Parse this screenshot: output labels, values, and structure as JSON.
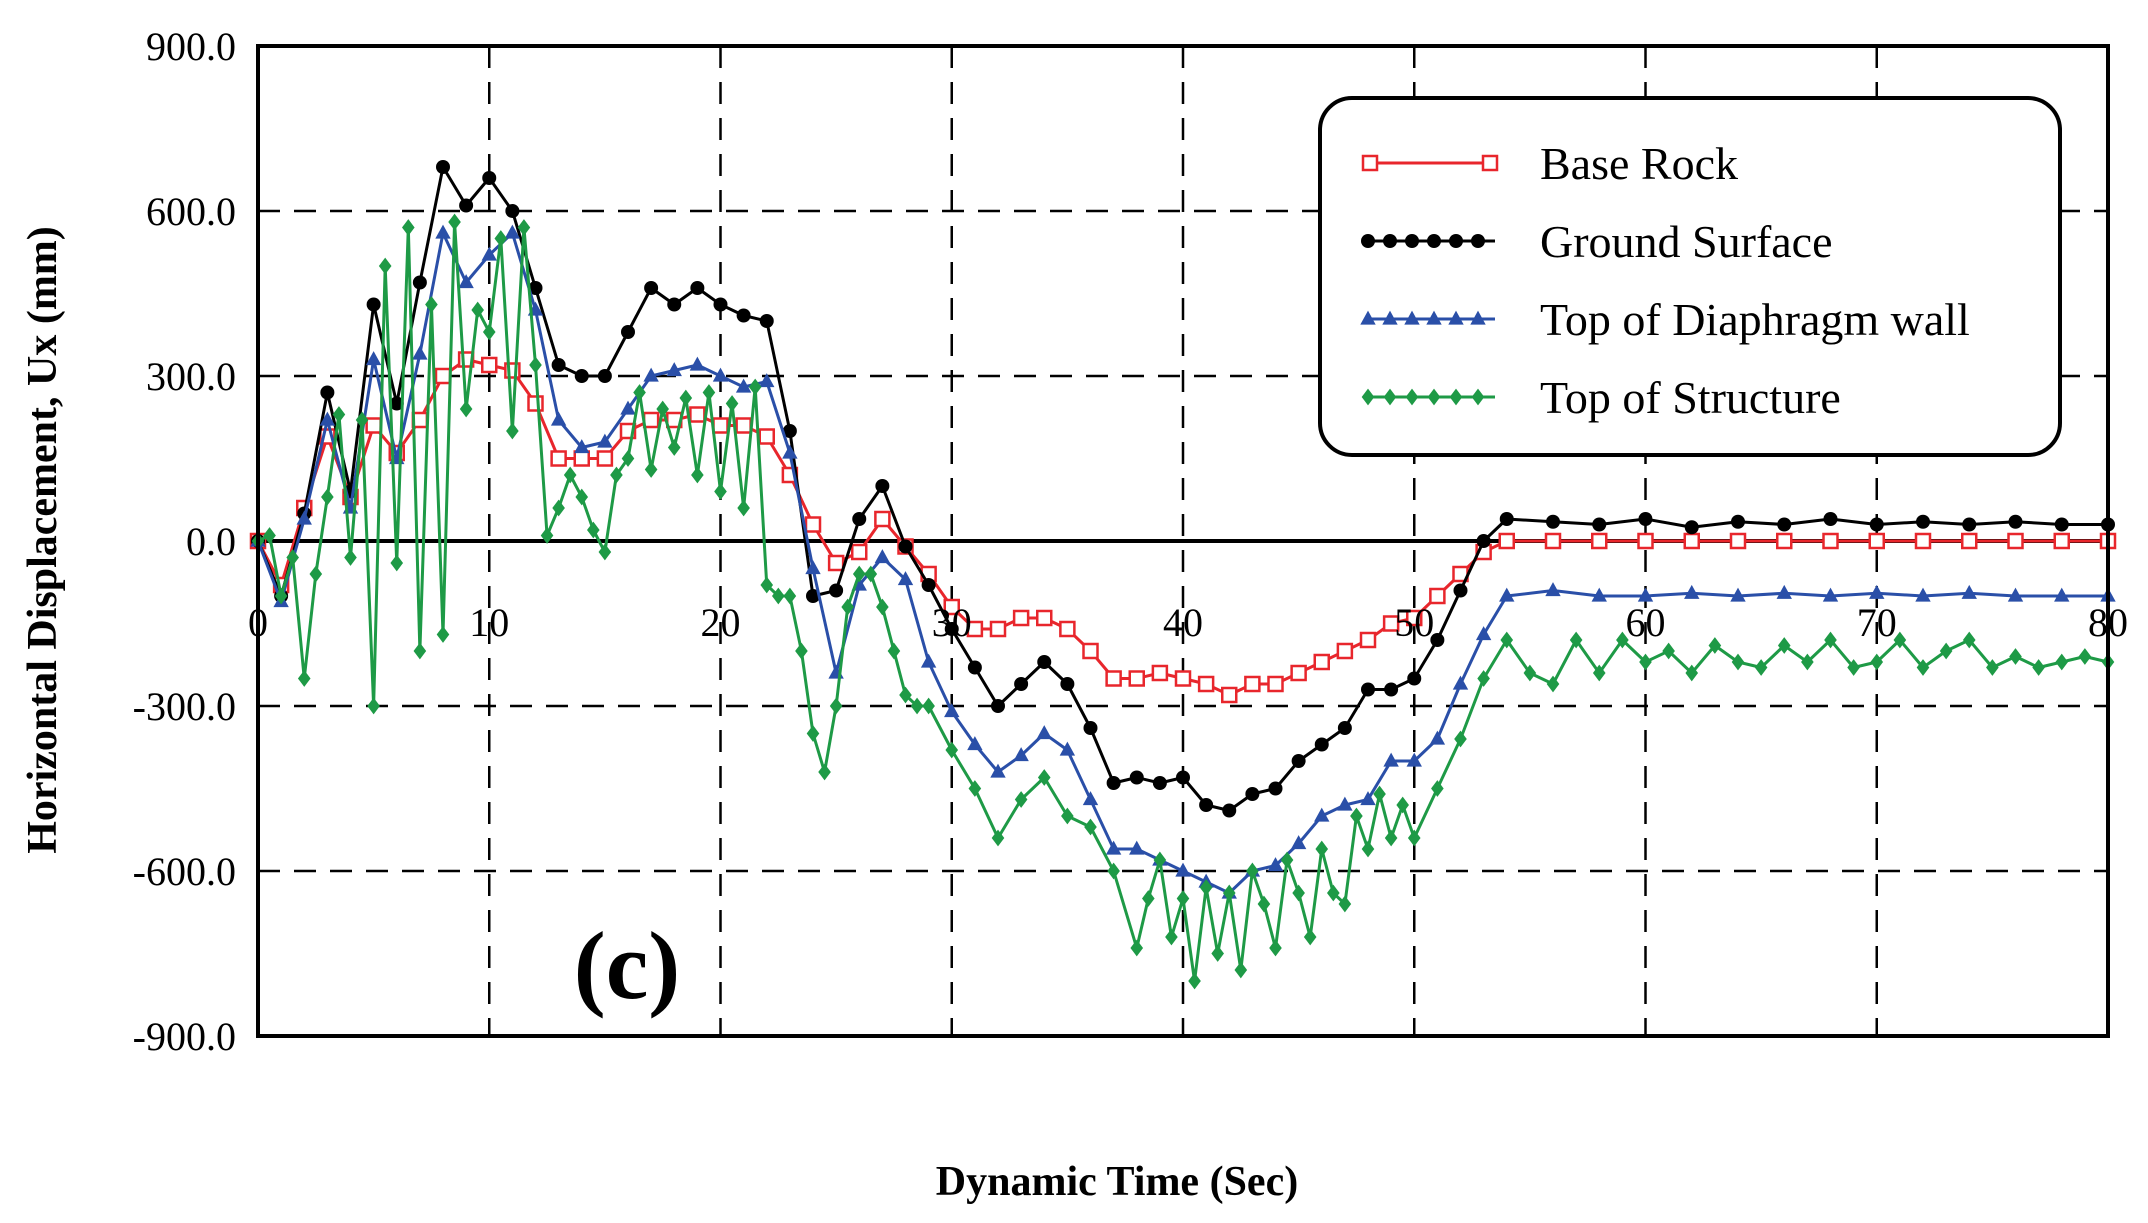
{
  "chart_data": {
    "type": "line",
    "title": "",
    "xlabel": "Dynamic Time (Sec)",
    "ylabel": "Horizontal Displacement, Ux (mm)",
    "xlim": [
      0,
      80
    ],
    "ylim": [
      -900,
      900
    ],
    "xticks": [
      0,
      10,
      20,
      30,
      40,
      50,
      60,
      70,
      80
    ],
    "xtick_labels": [
      "0",
      "10",
      "20",
      "30",
      "40",
      "50",
      "60",
      "70",
      "80"
    ],
    "yticks": [
      900,
      600,
      300,
      0,
      -300,
      -600,
      -900
    ],
    "ytick_labels": [
      "900.0",
      "600.0",
      "300.0",
      "0.0",
      "-300.0",
      "-600.0",
      "-900.0"
    ],
    "grid": true,
    "legend_position": "top-right",
    "annotation": "(c)",
    "series": [
      {
        "name": "Base Rock",
        "color": "#e8262c",
        "marker": "square-open",
        "x": [
          0,
          1,
          2,
          3,
          4,
          5,
          6,
          7,
          8,
          9,
          10,
          11,
          12,
          13,
          14,
          15,
          16,
          17,
          18,
          19,
          20,
          21,
          22,
          23,
          24,
          25,
          26,
          27,
          28,
          29,
          30,
          31,
          32,
          33,
          34,
          35,
          36,
          37,
          38,
          39,
          40,
          41,
          42,
          43,
          44,
          45,
          46,
          47,
          48,
          49,
          50,
          51,
          52,
          53,
          54,
          56,
          58,
          60,
          62,
          64,
          66,
          68,
          70,
          72,
          74,
          76,
          78,
          80
        ],
        "values": [
          0,
          -80,
          60,
          190,
          80,
          210,
          160,
          220,
          300,
          330,
          320,
          310,
          250,
          150,
          150,
          150,
          200,
          220,
          220,
          230,
          210,
          210,
          190,
          120,
          30,
          -40,
          -20,
          40,
          -10,
          -60,
          -120,
          -160,
          -160,
          -140,
          -140,
          -160,
          -200,
          -250,
          -250,
          -240,
          -250,
          -260,
          -280,
          -260,
          -260,
          -240,
          -220,
          -200,
          -180,
          -150,
          -140,
          -100,
          -60,
          -20,
          0,
          0,
          0,
          0,
          0,
          0,
          0,
          0,
          0,
          0,
          0,
          0,
          0,
          0
        ]
      },
      {
        "name": "Ground Surface",
        "color": "#000000",
        "marker": "circle-filled",
        "x": [
          0,
          1,
          2,
          3,
          4,
          5,
          6,
          7,
          8,
          9,
          10,
          11,
          12,
          13,
          14,
          15,
          16,
          17,
          18,
          19,
          20,
          21,
          22,
          23,
          24,
          25,
          26,
          27,
          28,
          29,
          30,
          31,
          32,
          33,
          34,
          35,
          36,
          37,
          38,
          39,
          40,
          41,
          42,
          43,
          44,
          45,
          46,
          47,
          48,
          49,
          50,
          51,
          52,
          53,
          54,
          56,
          58,
          60,
          62,
          64,
          66,
          68,
          70,
          72,
          74,
          76,
          78,
          80
        ],
        "values": [
          0,
          -100,
          50,
          270,
          90,
          430,
          250,
          470,
          680,
          610,
          660,
          600,
          460,
          320,
          300,
          300,
          380,
          460,
          430,
          460,
          430,
          410,
          400,
          200,
          -100,
          -90,
          40,
          100,
          -10,
          -80,
          -160,
          -230,
          -300,
          -260,
          -220,
          -260,
          -340,
          -440,
          -430,
          -440,
          -430,
          -480,
          -490,
          -460,
          -450,
          -400,
          -370,
          -340,
          -270,
          -270,
          -250,
          -180,
          -90,
          0,
          40,
          35,
          30,
          40,
          25,
          35,
          30,
          40,
          30,
          35,
          30,
          35,
          30,
          30
        ]
      },
      {
        "name": "Top of Diaphragm wall",
        "color": "#2a4fa8",
        "marker": "triangle-filled",
        "x": [
          0,
          1,
          2,
          3,
          4,
          5,
          6,
          7,
          8,
          9,
          10,
          11,
          12,
          13,
          14,
          15,
          16,
          17,
          18,
          19,
          20,
          21,
          22,
          23,
          24,
          25,
          26,
          27,
          28,
          29,
          30,
          31,
          32,
          33,
          34,
          35,
          36,
          37,
          38,
          39,
          40,
          41,
          42,
          43,
          44,
          45,
          46,
          47,
          48,
          49,
          50,
          51,
          52,
          53,
          54,
          56,
          58,
          60,
          62,
          64,
          66,
          68,
          70,
          72,
          74,
          76,
          78,
          80
        ],
        "values": [
          0,
          -110,
          40,
          220,
          60,
          330,
          150,
          340,
          560,
          470,
          520,
          560,
          420,
          220,
          170,
          180,
          240,
          300,
          310,
          320,
          300,
          280,
          290,
          160,
          -50,
          -240,
          -80,
          -30,
          -70,
          -220,
          -310,
          -370,
          -420,
          -390,
          -350,
          -380,
          -470,
          -560,
          -560,
          -580,
          -600,
          -620,
          -640,
          -600,
          -590,
          -550,
          -500,
          -480,
          -470,
          -400,
          -400,
          -360,
          -260,
          -170,
          -100,
          -90,
          -100,
          -100,
          -95,
          -100,
          -95,
          -100,
          -95,
          -100,
          -95,
          -100,
          -100,
          -100
        ]
      },
      {
        "name": "Top of Structure",
        "color": "#1e9a46",
        "marker": "diamond-filled",
        "x": [
          0,
          0.5,
          1,
          1.5,
          2,
          2.5,
          3,
          3.5,
          4,
          4.5,
          5,
          5.5,
          6,
          6.5,
          7,
          7.5,
          8,
          8.5,
          9,
          9.5,
          10,
          10.5,
          11,
          11.5,
          12,
          12.5,
          13,
          13.5,
          14,
          14.5,
          15,
          15.5,
          16,
          16.5,
          17,
          17.5,
          18,
          18.5,
          19,
          19.5,
          20,
          20.5,
          21,
          21.5,
          22,
          22.5,
          23,
          23.5,
          24,
          24.5,
          25,
          25.5,
          26,
          26.5,
          27,
          27.5,
          28,
          28.5,
          29,
          30,
          31,
          32,
          33,
          34,
          35,
          36,
          37,
          38,
          38.5,
          39,
          39.5,
          40,
          40.5,
          41,
          41.5,
          42,
          42.5,
          43,
          43.5,
          44,
          44.5,
          45,
          45.5,
          46,
          46.5,
          47,
          47.5,
          48,
          48.5,
          49,
          49.5,
          50,
          51,
          52,
          53,
          54,
          55,
          56,
          57,
          58,
          59,
          60,
          61,
          62,
          63,
          64,
          65,
          66,
          67,
          68,
          69,
          70,
          71,
          72,
          73,
          74,
          75,
          76,
          77,
          78,
          79,
          80
        ],
        "values": [
          0,
          10,
          -100,
          -30,
          -250,
          -60,
          80,
          230,
          -30,
          220,
          -300,
          500,
          -40,
          570,
          -200,
          430,
          -170,
          580,
          240,
          420,
          380,
          550,
          200,
          570,
          320,
          10,
          60,
          120,
          80,
          20,
          -20,
          120,
          150,
          270,
          130,
          240,
          170,
          260,
          120,
          270,
          90,
          250,
          60,
          280,
          -80,
          -100,
          -100,
          -200,
          -350,
          -420,
          -300,
          -120,
          -60,
          -60,
          -120,
          -200,
          -280,
          -300,
          -300,
          -380,
          -450,
          -540,
          -470,
          -430,
          -500,
          -520,
          -600,
          -740,
          -650,
          -580,
          -720,
          -650,
          -800,
          -630,
          -750,
          -640,
          -780,
          -600,
          -660,
          -740,
          -580,
          -640,
          -720,
          -560,
          -640,
          -660,
          -500,
          -560,
          -460,
          -540,
          -480,
          -540,
          -450,
          -360,
          -250,
          -180,
          -240,
          -260,
          -180,
          -240,
          -180,
          -220,
          -200,
          -240,
          -190,
          -220,
          -230,
          -190,
          -220,
          -180,
          -230,
          -220,
          -180,
          -230,
          -200,
          -180,
          -230,
          -210,
          -230,
          -220,
          -210,
          -220
        ]
      }
    ]
  }
}
